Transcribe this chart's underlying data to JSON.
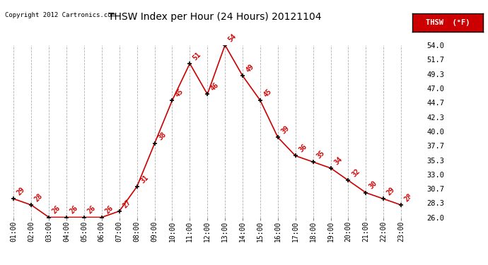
{
  "title": "THSW Index per Hour (24 Hours) 20121104",
  "copyright": "Copyright 2012 Cartronics.com",
  "legend_label": "THSW  (°F)",
  "hours": [
    "01:00",
    "02:00",
    "03:00",
    "04:00",
    "05:00",
    "06:00",
    "07:00",
    "08:00",
    "09:00",
    "10:00",
    "11:00",
    "12:00",
    "13:00",
    "14:00",
    "15:00",
    "16:00",
    "17:00",
    "18:00",
    "19:00",
    "20:00",
    "21:00",
    "22:00",
    "23:00"
  ],
  "values": [
    29,
    28,
    26,
    26,
    26,
    26,
    27,
    31,
    38,
    45,
    51,
    46,
    54,
    49,
    45,
    39,
    36,
    35,
    34,
    32,
    30,
    29,
    28
  ],
  "ylim": [
    26.0,
    54.0
  ],
  "yticks": [
    26.0,
    28.3,
    30.7,
    33.0,
    35.3,
    37.7,
    40.0,
    42.3,
    44.7,
    47.0,
    49.3,
    51.7,
    54.0
  ],
  "line_color": "#cc0000",
  "marker_color": "#000000",
  "bg_color": "#ffffff",
  "grid_color": "#b0b0b0",
  "label_color": "#cc0000",
  "title_color": "#000000",
  "legend_bg": "#cc0000",
  "legend_text_color": "#ffffff"
}
